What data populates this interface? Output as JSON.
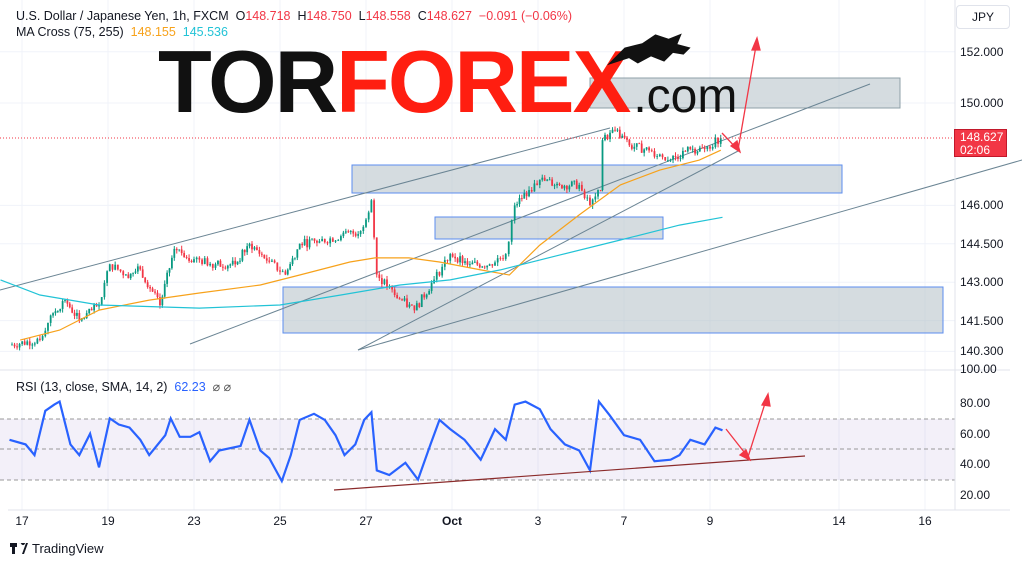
{
  "header": {
    "symbol": "U.S. Dollar / Japanese Yen, 1h, FXCM",
    "open_label": "O",
    "open": "148.718",
    "high_label": "H",
    "high": "148.750",
    "low_label": "L",
    "low": "148.558",
    "close_label": "C",
    "close": "148.627",
    "change": "−0.091 (−0.06%)"
  },
  "ma": {
    "label": "MA Cross (75, 255)",
    "fast": "148.155",
    "slow": "145.536"
  },
  "rsi": {
    "label": "RSI (13, close, SMA, 14, 2)",
    "value": "62.23",
    "extra": "⌀ ⌀"
  },
  "currency_button": "JPY",
  "last_price": {
    "price": "148.627",
    "countdown": "02:06"
  },
  "logo": {
    "part1": "TOR",
    "part2": "FOREX",
    "part3": ".com",
    "icon": "bull-icon"
  },
  "footer": {
    "brand": "TradingView",
    "icon": "tradingview-logo-icon"
  },
  "colors": {
    "down": "#f23645",
    "ma_fast": "#f7a21b",
    "ma_slow": "#22c3d6",
    "rsi": "#2962ff",
    "candle_up": "#089981",
    "candle_down": "#f23645",
    "annotation": "#f23645"
  },
  "chart_data": [
    {
      "type": "candlestick",
      "title": "U.S. Dollar / Japanese Yen, 1h, FXCM",
      "price_axis": {
        "ticks": [
          "152.000",
          "150.000",
          "146.000",
          "144.500",
          "143.000",
          "141.500",
          "140.300"
        ],
        "range": [
          140.0,
          153.5
        ]
      },
      "time_axis": {
        "ticks": [
          "17",
          "19",
          "23",
          "25",
          "27",
          "Oct",
          "3",
          "7",
          "9",
          "14",
          "16"
        ]
      },
      "close_path": [
        [
          "09-16 17",
          140.55
        ],
        [
          "09-17 10",
          140.75
        ],
        [
          "09-17 16",
          141.7
        ],
        [
          "09-18 00",
          142.3
        ],
        [
          "09-18 08",
          141.5
        ],
        [
          "09-18 19",
          142.1
        ],
        [
          "09-19 01",
          143.7
        ],
        [
          "09-19 10",
          143.3
        ],
        [
          "09-19 18",
          143.5
        ],
        [
          "09-20 05",
          142.1
        ],
        [
          "09-20 13",
          144.3
        ],
        [
          "09-23 00",
          143.9
        ],
        [
          "09-23 12",
          143.7
        ],
        [
          "09-23 23",
          143.7
        ],
        [
          "09-24 07",
          144.5
        ],
        [
          "09-24 18",
          143.8
        ],
        [
          "09-25 03",
          143.3
        ],
        [
          "09-25 11",
          144.5
        ],
        [
          "09-25 22",
          144.6
        ],
        [
          "09-26 10",
          144.8
        ],
        [
          "09-26 21",
          145.0
        ],
        [
          "09-27 03",
          146.2
        ],
        [
          "09-27 06",
          143.3
        ],
        [
          "09-27 16",
          142.5
        ],
        [
          "09-30 03",
          141.9
        ],
        [
          "09-30 14",
          143.1
        ],
        [
          "09-30 23",
          144.1
        ],
        [
          "10-01 10",
          143.7
        ],
        [
          "10-01 21",
          143.7
        ],
        [
          "10-02 06",
          144.1
        ],
        [
          "10-02 11",
          146.0
        ],
        [
          "10-02 19",
          146.6
        ],
        [
          "10-03 01",
          147.0
        ],
        [
          "10-03 12",
          146.8
        ],
        [
          "10-03 23",
          146.8
        ],
        [
          "10-04 05",
          146.0
        ],
        [
          "10-04 11",
          146.6
        ],
        [
          "10-04 12",
          148.55
        ],
        [
          "10-04 19",
          148.95
        ],
        [
          "10-07 03",
          148.35
        ],
        [
          "10-07 14",
          148.15
        ],
        [
          "10-08 02",
          147.8
        ],
        [
          "10-08 13",
          148.2
        ],
        [
          "10-08 21",
          148.2
        ],
        [
          "10-09 06",
          148.627
        ]
      ],
      "ma_fast": [
        [
          "09-16 23",
          140.74
        ],
        [
          "09-17 21",
          141.13
        ],
        [
          "09-18 19",
          141.91
        ],
        [
          "09-19 23",
          142.3
        ],
        [
          "09-23 03",
          142.58
        ],
        [
          "09-24 13",
          142.89
        ],
        [
          "09-25 11",
          143.28
        ],
        [
          "09-26 15",
          143.79
        ],
        [
          "09-27 05",
          143.95
        ],
        [
          "09-30 00",
          143.95
        ],
        [
          "09-30 17",
          143.79
        ],
        [
          "10-01 16",
          143.48
        ],
        [
          "10-02 08",
          143.28
        ],
        [
          "10-03 01",
          144.45
        ],
        [
          "10-03 23",
          145.63
        ],
        [
          "10-04 22",
          146.8
        ],
        [
          "10-07 20",
          147.38
        ],
        [
          "10-08 18",
          147.77
        ],
        [
          "10-09 06",
          148.155
        ]
      ],
      "ma_slow": [
        [
          "09-16 12",
          143.09
        ],
        [
          "09-17 10",
          142.5
        ],
        [
          "09-18 19",
          142.11
        ],
        [
          "09-23 03",
          141.99
        ],
        [
          "09-25 00",
          142.11
        ],
        [
          "09-26 10",
          142.5
        ],
        [
          "09-27 19",
          142.89
        ],
        [
          "09-30 23",
          143.09
        ],
        [
          "10-02 03",
          143.48
        ],
        [
          "10-03 12",
          144.06
        ],
        [
          "10-04 22",
          144.65
        ],
        [
          "10-08 07",
          145.23
        ],
        [
          "10-09 07",
          145.536
        ]
      ]
    },
    {
      "type": "line",
      "title": "RSI (13, close, SMA, 14, 2)",
      "y_axis": {
        "ticks": [
          "100.00",
          "80.00",
          "60.00",
          "40.00",
          "20.00"
        ],
        "range": [
          20,
          100
        ],
        "band": [
          30,
          70
        ],
        "mid": 50
      },
      "values": [
        [
          "09-16 17",
          56
        ],
        [
          "09-17 02",
          53
        ],
        [
          "09-17 07",
          46
        ],
        [
          "09-17 13",
          75
        ],
        [
          "09-17 18",
          79
        ],
        [
          "09-17 21",
          81
        ],
        [
          "09-18 03",
          53
        ],
        [
          "09-18 08",
          46
        ],
        [
          "09-18 14",
          60
        ],
        [
          "09-18 19",
          38
        ],
        [
          "09-19 01",
          70
        ],
        [
          "09-19 06",
          66
        ],
        [
          "09-19 12",
          64
        ],
        [
          "09-19 18",
          56
        ],
        [
          "09-19 23",
          46
        ],
        [
          "09-20 08",
          59
        ],
        [
          "09-20 11",
          70
        ],
        [
          "09-20 16",
          58
        ],
        [
          "09-20 22",
          58
        ],
        [
          "09-23 03",
          61
        ],
        [
          "09-23 09",
          42
        ],
        [
          "09-23 14",
          49
        ],
        [
          "09-24 02",
          52
        ],
        [
          "09-24 07",
          69
        ],
        [
          "09-24 13",
          49
        ],
        [
          "09-24 18",
          44
        ],
        [
          "09-25 01",
          29
        ],
        [
          "09-25 06",
          46
        ],
        [
          "09-25 11",
          69
        ],
        [
          "09-25 19",
          73
        ],
        [
          "09-26 01",
          69
        ],
        [
          "09-26 07",
          59
        ],
        [
          "09-26 12",
          46
        ],
        [
          "09-26 18",
          53
        ],
        [
          "09-26 23",
          69
        ],
        [
          "09-27 03",
          74
        ],
        [
          "09-27 06",
          36
        ],
        [
          "09-27 13",
          33
        ],
        [
          "09-27 22",
          41
        ],
        [
          "09-30 05",
          30
        ],
        [
          "09-30 12",
          53
        ],
        [
          "09-30 17",
          69
        ],
        [
          "09-30 23",
          63
        ],
        [
          "10-01 07",
          56
        ],
        [
          "10-01 16",
          43
        ],
        [
          "10-02 00",
          63
        ],
        [
          "10-02 06",
          56
        ],
        [
          "10-02 11",
          79
        ],
        [
          "10-02 17",
          81
        ],
        [
          "10-03 01",
          76
        ],
        [
          "10-03 07",
          63
        ],
        [
          "10-03 15",
          53
        ],
        [
          "10-03 23",
          49
        ],
        [
          "10-04 05",
          36
        ],
        [
          "10-04 10",
          81
        ],
        [
          "10-04 16",
          72
        ],
        [
          "10-07 00",
          59
        ],
        [
          "10-07 09",
          56
        ],
        [
          "10-07 17",
          42
        ],
        [
          "10-08 02",
          43
        ],
        [
          "10-08 07",
          46
        ],
        [
          "10-08 13",
          56
        ],
        [
          "10-08 21",
          53
        ],
        [
          "10-09 03",
          64
        ],
        [
          "10-09 07",
          62.23
        ]
      ]
    }
  ]
}
